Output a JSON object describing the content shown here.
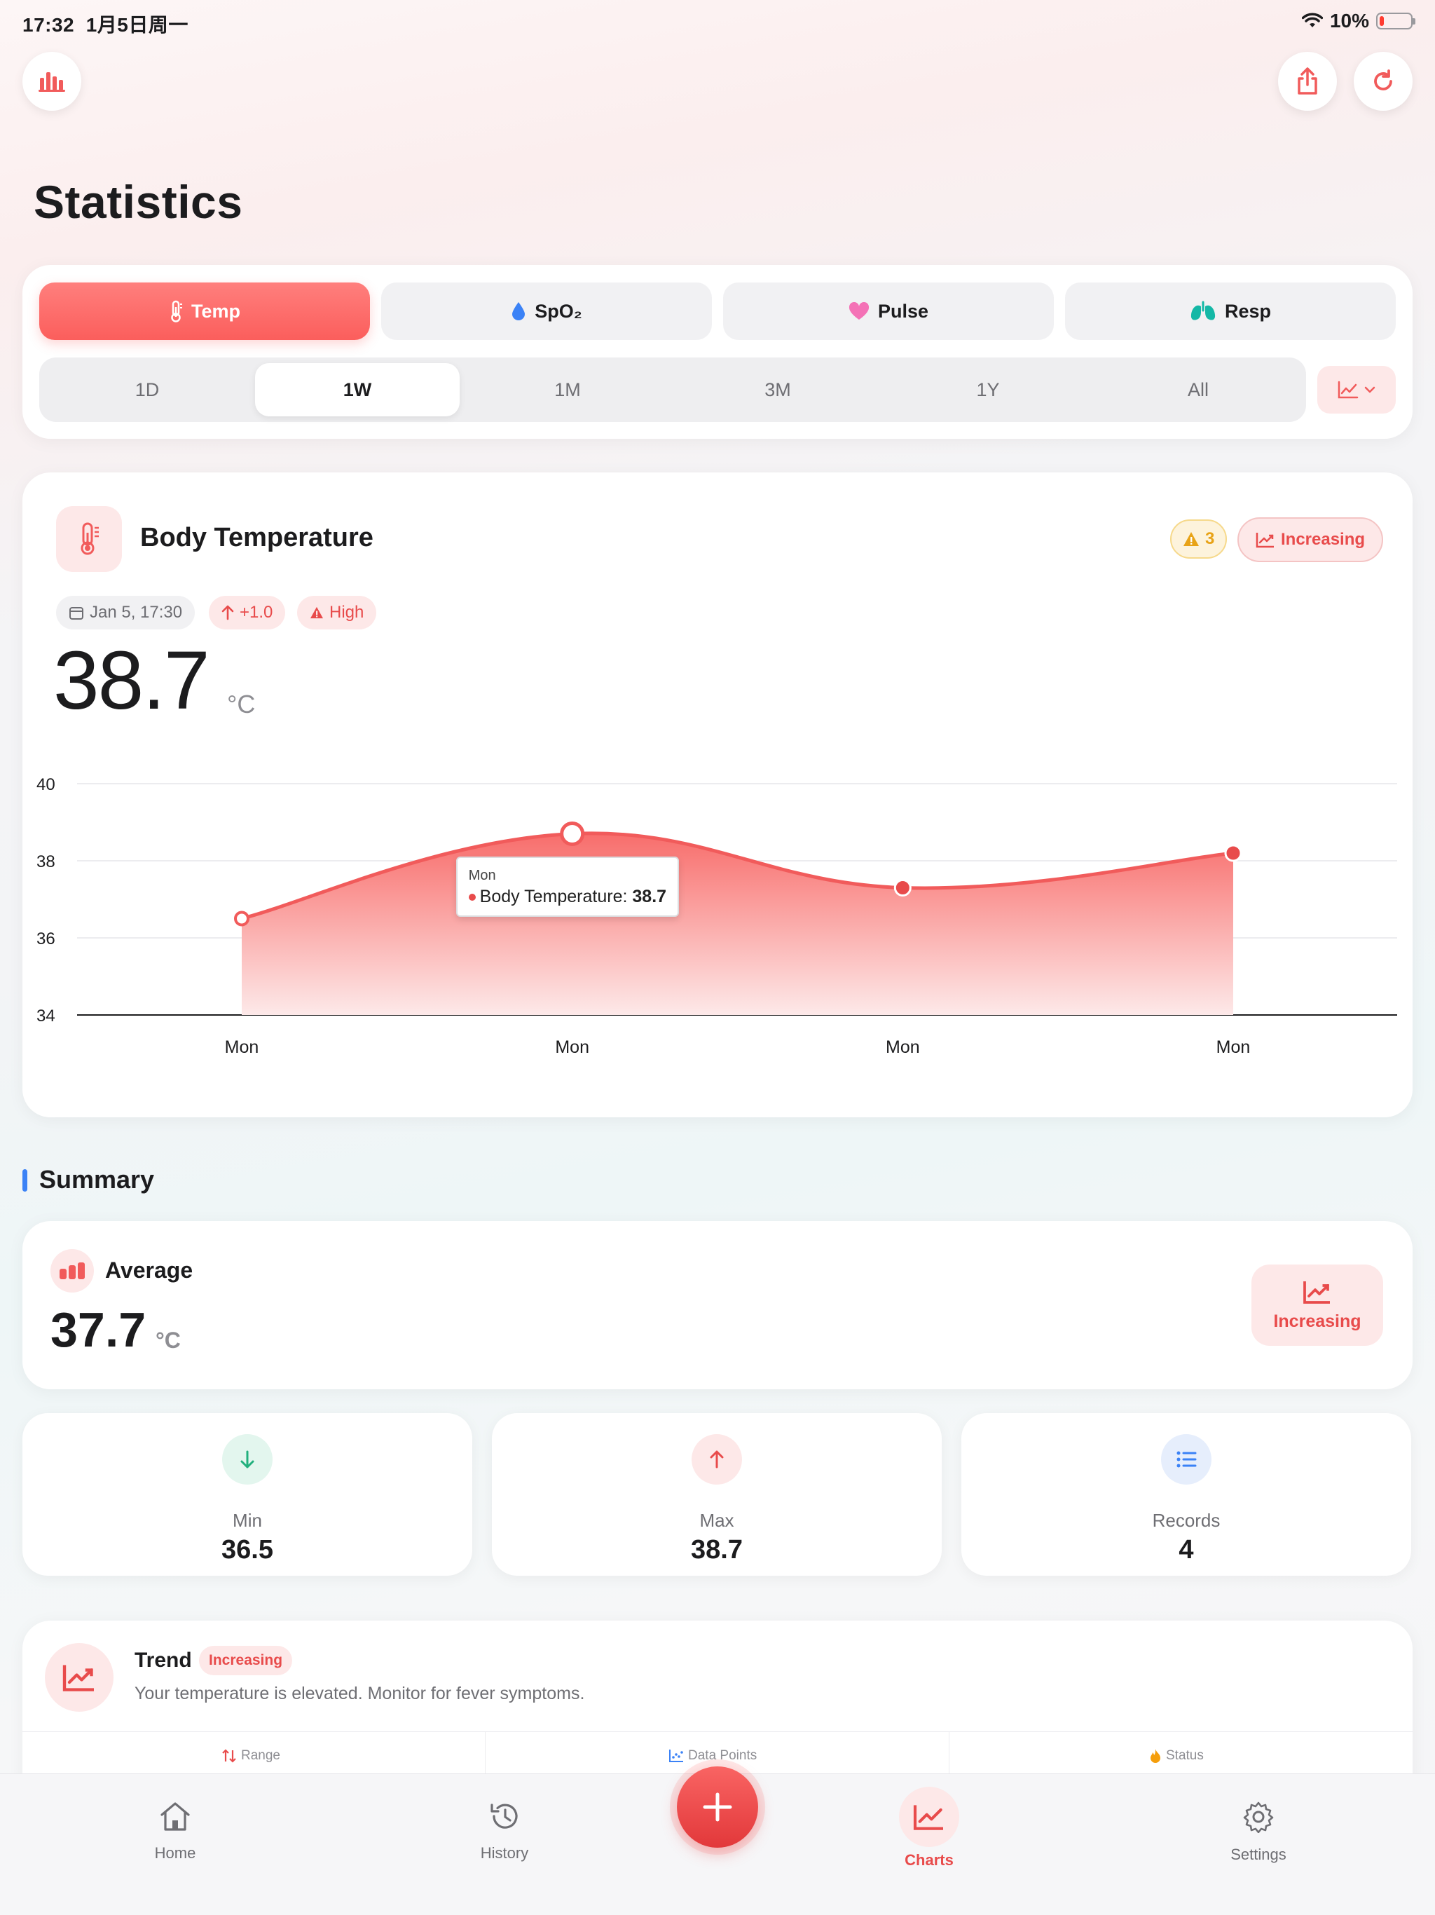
{
  "status_bar": {
    "time": "17:32",
    "date": "1月5日周一",
    "battery": "10%"
  },
  "header": {
    "title": "Statistics"
  },
  "metric_tabs": [
    {
      "label": "Temp",
      "icon": "thermometer-icon",
      "active": true
    },
    {
      "label": "SpO₂",
      "icon": "drop-icon",
      "active": false
    },
    {
      "label": "Pulse",
      "icon": "heart-icon",
      "active": false
    },
    {
      "label": "Resp",
      "icon": "lungs-icon",
      "active": false
    }
  ],
  "ranges": [
    {
      "label": "1D",
      "active": false
    },
    {
      "label": "1W",
      "active": true
    },
    {
      "label": "1M",
      "active": false
    },
    {
      "label": "3M",
      "active": false
    },
    {
      "label": "1Y",
      "active": false
    },
    {
      "label": "All",
      "active": false
    }
  ],
  "temp_card": {
    "title": "Body Temperature",
    "warning_count": "3",
    "trend_label": "Increasing",
    "timestamp": "Jan 5, 17:30",
    "change": "+1.0",
    "level": "High",
    "current_value": "38.7",
    "unit": "°C"
  },
  "chart_data": {
    "type": "area",
    "categories": [
      "Mon",
      "Mon",
      "Mon",
      "Mon"
    ],
    "series": [
      {
        "name": "Body Temperature",
        "values": [
          36.5,
          38.7,
          37.3,
          38.2
        ]
      }
    ],
    "ylim": [
      34,
      40
    ],
    "yticks": [
      34,
      36,
      38,
      40
    ],
    "grid": true,
    "tooltip": {
      "title": "Mon",
      "label": "Body Temperature:",
      "value": "38.7",
      "index": 1
    },
    "colors": {
      "line": "#f15b5b",
      "fill_top": "#f86d6b",
      "fill_bottom": "#fde9e9"
    }
  },
  "summary": {
    "section_title": "Summary",
    "average_label": "Average",
    "average_value": "37.7",
    "unit": "°C",
    "trend_badge": "Increasing",
    "stats": [
      {
        "label": "Min",
        "value": "36.5",
        "icon": "arrow-down-icon"
      },
      {
        "label": "Max",
        "value": "38.7",
        "icon": "arrow-up-icon"
      },
      {
        "label": "Records",
        "value": "4",
        "icon": "list-icon"
      }
    ]
  },
  "trend_card": {
    "title": "Trend",
    "badge": "Increasing",
    "message": "Your temperature is elevated. Monitor for fever symptoms.",
    "footer": [
      {
        "label": "Range",
        "icon": "range-icon"
      },
      {
        "label": "Data Points",
        "icon": "scatter-icon"
      },
      {
        "label": "Status",
        "icon": "flame-icon"
      }
    ]
  },
  "bottom_nav": [
    {
      "label": "Home",
      "icon": "home-icon",
      "active": false
    },
    {
      "label": "History",
      "icon": "history-icon",
      "active": false
    },
    {
      "label": "Charts",
      "icon": "charts-icon",
      "active": true
    },
    {
      "label": "Settings",
      "icon": "settings-icon",
      "active": false
    }
  ],
  "colors": {
    "accent": "#f15b5b",
    "accent_soft": "#fde8e8",
    "blue": "#3b82f6",
    "green": "#22b07d",
    "amber": "#e8a317"
  }
}
